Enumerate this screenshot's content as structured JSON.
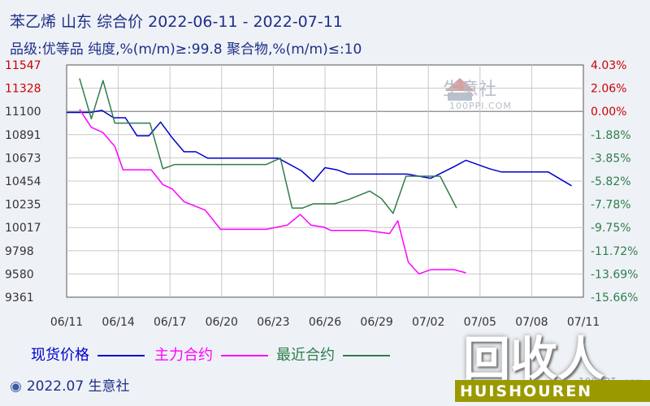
{
  "header": {
    "title": "苯乙烯 山东 综合价 2022-06-11 - 2022-07-11",
    "subtitle": "品级:优等品 纯度,%(m/m)≥:99.8 聚合物,%(m/m)≤:10"
  },
  "legend": {
    "spot": "现货价格",
    "main": "主力合约",
    "latest": "最近合约"
  },
  "footer": {
    "copyright": "2022.07 生意社",
    "site": "100PPI.com"
  },
  "watermark": {
    "name": "生意社",
    "domain": "100PPI.COM"
  },
  "brand": {
    "big": "回收人",
    "small": "HUISHOUREN"
  },
  "colors": {
    "spot": "#0000cc",
    "main": "#ff00ff",
    "latest": "#2e7d4a",
    "left_axis": "#cc0000",
    "right_axis": "#cc0000",
    "right_axis_neg": "#2e7d4a",
    "title": "#1f2f86"
  },
  "chart_data": {
    "type": "line",
    "x_ticks": [
      "06/11",
      "06/14",
      "06/17",
      "06/20",
      "06/23",
      "06/26",
      "06/29",
      "07/02",
      "07/05",
      "07/08",
      "07/11"
    ],
    "left_ticks": [
      "11547",
      "11328",
      "11100",
      "10891",
      "10673",
      "10454",
      "10235",
      "10017",
      "9798",
      "9580",
      "9361"
    ],
    "right_ticks": [
      "4.03%",
      "2.06%",
      "0.00%",
      "-1.88%",
      "-3.85%",
      "-5.82%",
      "-7.78%",
      "-9.75%",
      "-11.72%",
      "-13.69%",
      "-15.66%"
    ],
    "left_highlight_count": 2,
    "right_highlight_count": 3,
    "ylim": [
      9361,
      11547
    ],
    "grid": true,
    "legend_position": "bottom",
    "series": [
      {
        "key": "spot",
        "name": "现货价格",
        "points": [
          [
            0,
            11100
          ],
          [
            2,
            11100
          ],
          [
            3,
            11120
          ],
          [
            4,
            11050
          ],
          [
            5,
            11050
          ],
          [
            6,
            10880
          ],
          [
            7,
            10880
          ],
          [
            8,
            11010
          ],
          [
            9,
            10860
          ],
          [
            10,
            10730
          ],
          [
            11,
            10730
          ],
          [
            12,
            10670
          ],
          [
            18,
            10670
          ],
          [
            20,
            10550
          ],
          [
            21,
            10450
          ],
          [
            22,
            10580
          ],
          [
            23,
            10560
          ],
          [
            24,
            10520
          ],
          [
            29,
            10520
          ],
          [
            31,
            10480
          ],
          [
            33,
            10590
          ],
          [
            34,
            10650
          ],
          [
            36,
            10570
          ],
          [
            37,
            10540
          ],
          [
            41,
            10540
          ],
          [
            43,
            10410
          ]
        ]
      },
      {
        "key": "main",
        "name": "主力合约",
        "points": [
          [
            1.1,
            11130
          ],
          [
            2.1,
            10960
          ],
          [
            3.1,
            10910
          ],
          [
            4.1,
            10780
          ],
          [
            4.8,
            10560
          ],
          [
            7.2,
            10560
          ],
          [
            8.2,
            10420
          ],
          [
            9,
            10380
          ],
          [
            10,
            10260
          ],
          [
            11.8,
            10180
          ],
          [
            13.1,
            10000
          ],
          [
            17,
            10000
          ],
          [
            18.8,
            10040
          ],
          [
            19.9,
            10140
          ],
          [
            20.8,
            10040
          ],
          [
            21.9,
            10020
          ],
          [
            22.5,
            9990
          ],
          [
            25.5,
            9990
          ],
          [
            27.5,
            9960
          ],
          [
            28.2,
            10080
          ],
          [
            29.1,
            9690
          ],
          [
            30,
            9580
          ],
          [
            31,
            9620
          ],
          [
            33,
            9620
          ],
          [
            34,
            9590
          ]
        ]
      },
      {
        "key": "latest",
        "name": "最近合约",
        "points": [
          [
            1.1,
            11420
          ],
          [
            2.1,
            11040
          ],
          [
            3.1,
            11400
          ],
          [
            4.1,
            11000
          ],
          [
            5,
            11000
          ],
          [
            7.1,
            11000
          ],
          [
            8.2,
            10570
          ],
          [
            9.2,
            10610
          ],
          [
            17,
            10610
          ],
          [
            18.2,
            10670
          ],
          [
            19.2,
            10200
          ],
          [
            20.1,
            10200
          ],
          [
            21,
            10240
          ],
          [
            22.8,
            10240
          ],
          [
            24,
            10280
          ],
          [
            25.8,
            10360
          ],
          [
            26.8,
            10290
          ],
          [
            27.8,
            10150
          ],
          [
            28.9,
            10500
          ],
          [
            31.8,
            10500
          ],
          [
            33.2,
            10200
          ]
        ]
      }
    ]
  }
}
